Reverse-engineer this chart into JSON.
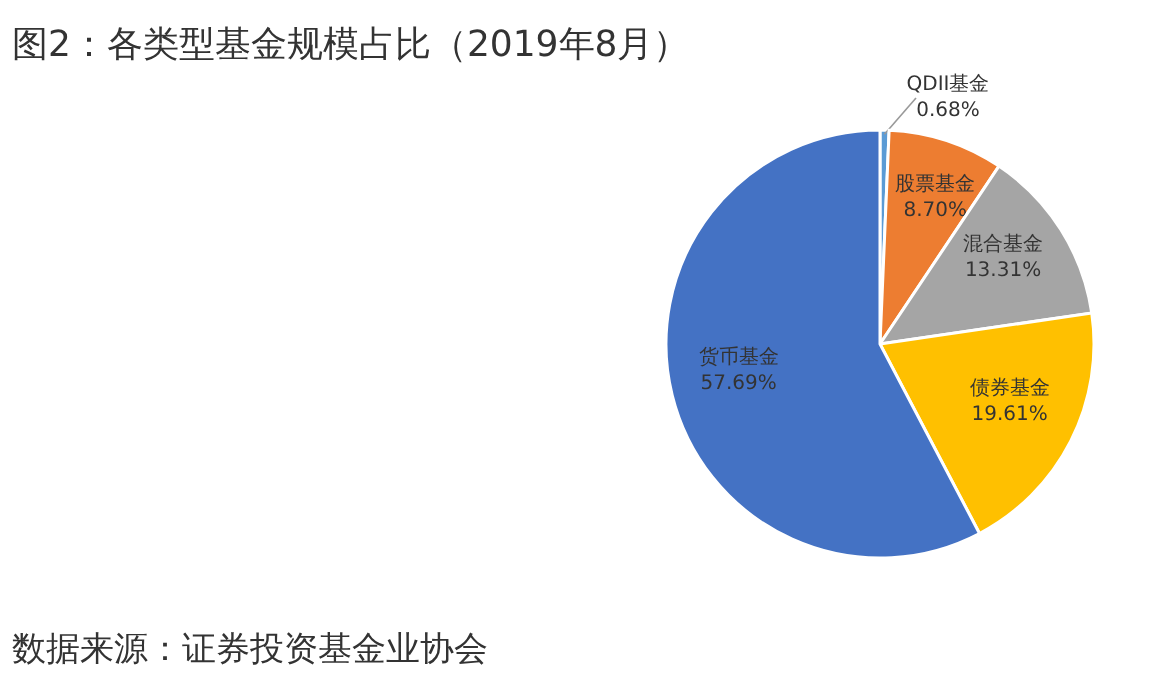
{
  "chart_data": {
    "type": "pie",
    "title": "图2：各类型基金规模占比（2019年8月）",
    "categories": [
      "QDII基金",
      "股票基金",
      "混合基金",
      "债券基金",
      "货币基金"
    ],
    "values": [
      0.68,
      8.7,
      13.31,
      19.61,
      57.69
    ],
    "value_labels": [
      "0.68%",
      "8.70%",
      "13.31%",
      "19.61%",
      "57.69%"
    ],
    "colors": [
      "#5b9bd5",
      "#ed7d31",
      "#a5a5a5",
      "#ffc000",
      "#4472c4"
    ],
    "annotations": [
      "数据来源：证券投资基金业协会"
    ]
  }
}
